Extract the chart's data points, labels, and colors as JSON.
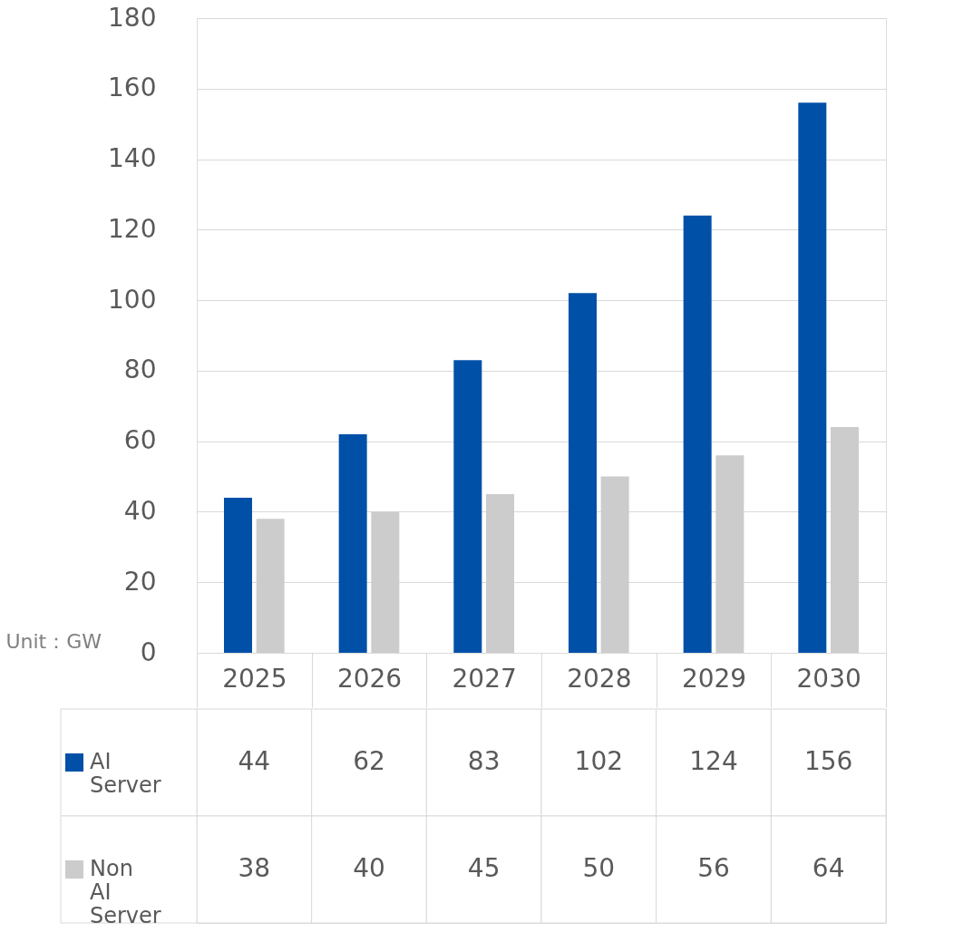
{
  "chart_data": {
    "type": "bar",
    "categories": [
      "2025",
      "2026",
      "2027",
      "2028",
      "2029",
      "2030"
    ],
    "series": [
      {
        "name": "AI Server",
        "color": "#0050a8",
        "values": [
          44,
          62,
          83,
          102,
          124,
          156
        ]
      },
      {
        "name": "Non AI Server",
        "color": "#cccccc",
        "values": [
          38,
          40,
          45,
          50,
          56,
          64
        ]
      }
    ],
    "ylim": [
      0,
      180
    ],
    "yticks": [
      0,
      20,
      40,
      60,
      80,
      100,
      120,
      140,
      160,
      180
    ],
    "grid": "y",
    "legend": "bottom",
    "data_labels": true,
    "annotations": [
      "Unit：GW"
    ]
  }
}
